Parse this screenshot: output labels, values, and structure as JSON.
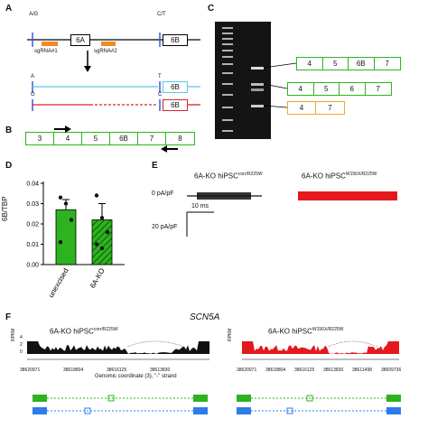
{
  "panels": {
    "a": "A",
    "b": "B",
    "c": "C",
    "d": "D",
    "e": "E",
    "f": "F"
  },
  "panel_a": {
    "snp_left": "A/G",
    "snp_right": "C/T",
    "exon_6a": "6A",
    "exon_6b": "6B",
    "sgrna1": "sgRNA#1",
    "sgrna2": "sgRNA#2",
    "allele1_left": "A",
    "allele1_right": "T",
    "allele2_left": "G",
    "allele2_right": "C",
    "exon_6b_blue": "6B",
    "exon_6b_red": "6B",
    "colors": {
      "blue": "#5bc8e8",
      "red": "#d8242b",
      "orange": "#f08a24"
    }
  },
  "panel_b": {
    "exons": [
      "3",
      "4",
      "5",
      "6B",
      "7",
      "8"
    ]
  },
  "panel_c": {
    "row1": [
      "4",
      "5",
      "6B",
      "7"
    ],
    "row2": [
      "4",
      "5",
      "6",
      "7"
    ],
    "row3": [
      "4",
      "7"
    ]
  },
  "panel_d": {
    "ylabel": "6B/TBP",
    "categories": [
      "unexcised",
      "6A-KO"
    ],
    "chart_data": {
      "type": "bar",
      "categories": [
        "unexcised",
        "6A-KO"
      ],
      "values": [
        0.027,
        0.022
      ],
      "errors": [
        0.005,
        0.008
      ],
      "points": [
        [
          0.033,
          0.03,
          0.022,
          0.011
        ],
        [
          0.034,
          0.023,
          0.016,
          0.01,
          0.008
        ]
      ],
      "yticks": [
        "0.00",
        "0.01",
        "0.02",
        "0.03",
        "0.04"
      ],
      "ylim": [
        0,
        0.04
      ],
      "colors": [
        "#2db31f",
        "#2db31f"
      ],
      "hatched": [
        false,
        true
      ]
    }
  },
  "panel_e": {
    "title_left_main": "6A-KO hiPSC",
    "title_left_sup": "corr/R225W",
    "title_right_main": "6A-KO hiPSC",
    "title_right_sup": "W156X/R225W",
    "zero_label": "0 pA/pF",
    "time_scale": "10 ms",
    "current_scale": "20 pA/pF",
    "colors": {
      "left": "#111111",
      "right": "#e3191e"
    }
  },
  "panel_f": {
    "gene": "SCN5A",
    "title_left_main": "6A-KO hiPSC",
    "title_left_sup": "corr/R225W",
    "title_right_main": "6A-KO hiPSC",
    "title_right_sup": "W156X/R225W",
    "ylabel": "RPKM",
    "yticks_left": [
      "0",
      "2",
      "4"
    ],
    "xticks_left": [
      "38620971",
      "38618804",
      "38616125",
      "38613830"
    ],
    "xticks_right": [
      "38620971",
      "38618804",
      "38616125",
      "38613830",
      "38611498",
      "38609736"
    ],
    "xticks_mid": [
      "38611498",
      "38609736"
    ],
    "coord_label": "Genomic coordinate (3), \"-\" strand",
    "colors": {
      "left": "#111111",
      "right": "#e3191e",
      "green": "#2db31f",
      "blue": "#2b7de9"
    }
  }
}
